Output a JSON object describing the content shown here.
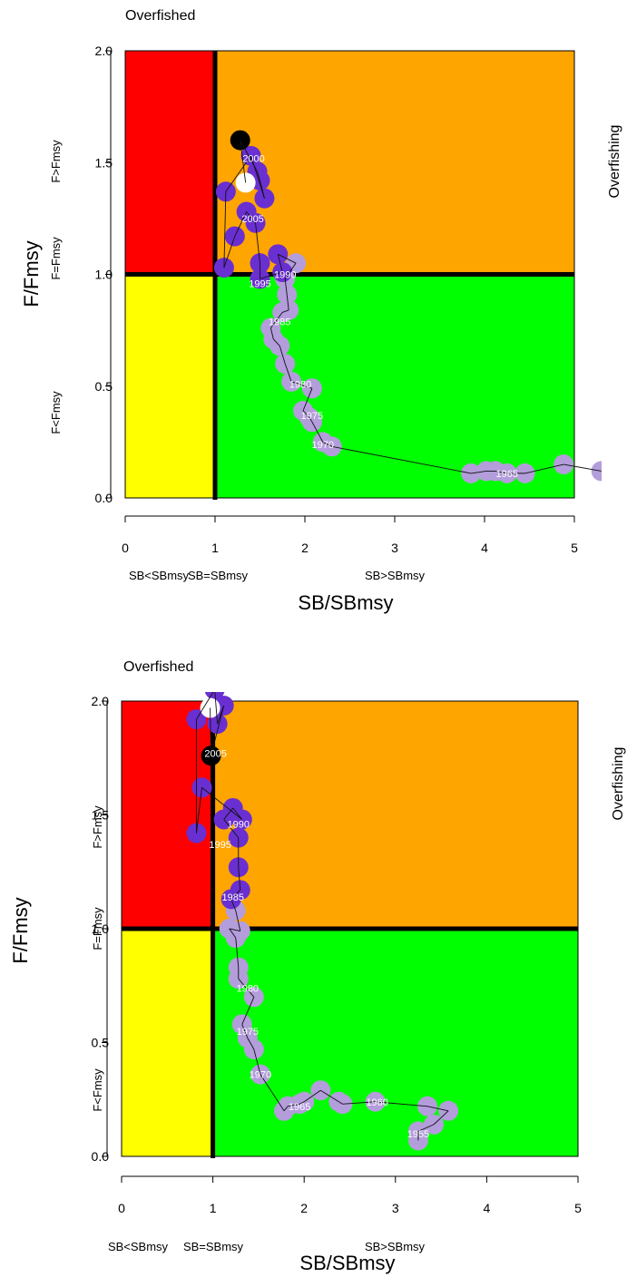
{
  "chart_data": [
    {
      "type": "scatter",
      "title": "",
      "xlabel": "SB/SBmsy",
      "ylabel": "F/Fmsy",
      "xlim": [
        0,
        5
      ],
      "ylim": [
        0,
        2
      ],
      "x_ticks": [
        "0",
        "1",
        "2",
        "3",
        "4",
        "5"
      ],
      "y_ticks": [
        "0.0",
        "0.5",
        "1.0",
        "1.5",
        "2.0"
      ],
      "zone_colors": {
        "red": "#ff0000",
        "orange": "#ffa500",
        "yellow": "#ffff00",
        "green": "#00ff00"
      },
      "point_colors": {
        "early": "#b39ddb",
        "late": "#6a2fd0",
        "final": "#000000",
        "current": "#ffffff"
      },
      "reference_lines": {
        "x": 1,
        "y": 1
      },
      "annotations": {
        "overfished": "Overfished",
        "overfishing": "Overfishing",
        "f_above": "F>Fmsy",
        "f_equal": "F=Fmsy",
        "f_below": "F<Fmsy",
        "sb_below": "SB<SBmsy",
        "sb_equal": "SB=SBmsy",
        "sb_above": "SB>SBmsy"
      },
      "trajectory": [
        {
          "x": 5.3,
          "y": 0.12
        },
        {
          "x": 4.88,
          "y": 0.15
        },
        {
          "x": 4.45,
          "y": 0.11
        },
        {
          "x": 4.25,
          "y": 0.11
        },
        {
          "x": 4.12,
          "y": 0.12
        },
        {
          "x": 4.02,
          "y": 0.12
        },
        {
          "x": 3.85,
          "y": 0.11
        },
        {
          "x": 2.3,
          "y": 0.23
        },
        {
          "x": 2.2,
          "y": 0.25
        },
        {
          "x": 2.08,
          "y": 0.34
        },
        {
          "x": 2.05,
          "y": 0.36
        },
        {
          "x": 1.98,
          "y": 0.39
        },
        {
          "x": 2.08,
          "y": 0.49
        },
        {
          "x": 1.85,
          "y": 0.52
        },
        {
          "x": 1.78,
          "y": 0.6
        },
        {
          "x": 1.72,
          "y": 0.68
        },
        {
          "x": 1.65,
          "y": 0.71
        },
        {
          "x": 1.62,
          "y": 0.76
        },
        {
          "x": 1.75,
          "y": 0.83
        },
        {
          "x": 1.82,
          "y": 0.84
        },
        {
          "x": 1.8,
          "y": 0.91
        },
        {
          "x": 1.78,
          "y": 0.98
        },
        {
          "x": 1.9,
          "y": 1.05
        },
        {
          "x": 1.7,
          "y": 1.09
        },
        {
          "x": 1.75,
          "y": 1.01
        },
        {
          "x": 1.5,
          "y": 0.98
        },
        {
          "x": 1.5,
          "y": 1.05
        },
        {
          "x": 1.45,
          "y": 1.23
        },
        {
          "x": 1.35,
          "y": 1.28
        },
        {
          "x": 1.22,
          "y": 1.17
        },
        {
          "x": 1.1,
          "y": 1.03
        },
        {
          "x": 1.12,
          "y": 1.37
        },
        {
          "x": 1.4,
          "y": 1.53
        },
        {
          "x": 1.55,
          "y": 1.34
        },
        {
          "x": 1.5,
          "y": 1.42
        },
        {
          "x": 1.47,
          "y": 1.46
        },
        {
          "x": 1.28,
          "y": 1.6
        },
        {
          "x": 1.34,
          "y": 1.41
        }
      ],
      "year_labels": [
        {
          "year": "1965",
          "x": 4.25,
          "y": 0.11
        },
        {
          "year": "1970",
          "x": 2.2,
          "y": 0.24
        },
        {
          "year": "1975",
          "x": 2.08,
          "y": 0.37
        },
        {
          "year": "1980",
          "x": 1.95,
          "y": 0.51
        },
        {
          "year": "1985",
          "x": 1.72,
          "y": 0.79
        },
        {
          "year": "1990",
          "x": 1.78,
          "y": 1.0
        },
        {
          "year": "1995",
          "x": 1.5,
          "y": 0.96
        },
        {
          "year": "2000",
          "x": 1.43,
          "y": 1.52
        },
        {
          "year": "2005",
          "x": 1.42,
          "y": 1.25
        }
      ]
    },
    {
      "type": "scatter",
      "title": "",
      "xlabel": "SB/SBmsy",
      "ylabel": "F/Fmsy",
      "xlim": [
        0,
        5
      ],
      "ylim": [
        0,
        2
      ],
      "x_ticks": [
        "0",
        "1",
        "2",
        "3",
        "4",
        "5"
      ],
      "y_ticks": [
        "0.0",
        "0.5",
        "1.0",
        "1.5",
        "2.0"
      ],
      "zone_colors": {
        "red": "#ff0000",
        "orange": "#ffa500",
        "yellow": "#ffff00",
        "green": "#00ff00"
      },
      "point_colors": {
        "early": "#b39ddb",
        "late": "#6a2fd0",
        "final": "#000000",
        "current": "#ffffff"
      },
      "reference_lines": {
        "x": 1,
        "y": 1
      },
      "annotations": {
        "overfished": "Overfished",
        "overfishing": "Overfishing",
        "f_above": "F>Fmsy",
        "f_equal": "F=Fmsy",
        "f_below": "F<Fmsy",
        "sb_below": "SB<SBmsy",
        "sb_equal": "SB=SBmsy",
        "sb_above": "SB>SBmsy"
      },
      "trajectory": [
        {
          "x": 3.25,
          "y": 0.07
        },
        {
          "x": 3.25,
          "y": 0.11
        },
        {
          "x": 3.42,
          "y": 0.14
        },
        {
          "x": 3.58,
          "y": 0.2
        },
        {
          "x": 3.35,
          "y": 0.22
        },
        {
          "x": 2.78,
          "y": 0.24
        },
        {
          "x": 2.42,
          "y": 0.23
        },
        {
          "x": 2.38,
          "y": 0.24
        },
        {
          "x": 2.18,
          "y": 0.29
        },
        {
          "x": 2.0,
          "y": 0.24
        },
        {
          "x": 1.95,
          "y": 0.23
        },
        {
          "x": 1.82,
          "y": 0.22
        },
        {
          "x": 1.78,
          "y": 0.2
        },
        {
          "x": 1.52,
          "y": 0.36
        },
        {
          "x": 1.45,
          "y": 0.47
        },
        {
          "x": 1.38,
          "y": 0.52
        },
        {
          "x": 1.32,
          "y": 0.58
        },
        {
          "x": 1.45,
          "y": 0.7
        },
        {
          "x": 1.28,
          "y": 0.78
        },
        {
          "x": 1.28,
          "y": 0.83
        },
        {
          "x": 1.25,
          "y": 0.96
        },
        {
          "x": 1.18,
          "y": 1.0
        },
        {
          "x": 1.3,
          "y": 0.99
        },
        {
          "x": 1.25,
          "y": 1.08
        },
        {
          "x": 1.2,
          "y": 1.13
        },
        {
          "x": 1.3,
          "y": 1.17
        },
        {
          "x": 1.28,
          "y": 1.27
        },
        {
          "x": 1.28,
          "y": 1.4
        },
        {
          "x": 1.12,
          "y": 1.48
        },
        {
          "x": 1.22,
          "y": 1.53
        },
        {
          "x": 1.32,
          "y": 1.48
        },
        {
          "x": 0.88,
          "y": 1.62
        },
        {
          "x": 0.82,
          "y": 1.42
        },
        {
          "x": 0.82,
          "y": 1.92
        },
        {
          "x": 1.02,
          "y": 2.05
        },
        {
          "x": 1.05,
          "y": 1.9
        },
        {
          "x": 1.12,
          "y": 1.98
        },
        {
          "x": 0.98,
          "y": 1.76
        },
        {
          "x": 0.97,
          "y": 1.97
        }
      ],
      "year_labels": [
        {
          "year": "1955",
          "x": 3.25,
          "y": 0.1
        },
        {
          "year": "1960",
          "x": 2.8,
          "y": 0.24
        },
        {
          "year": "1965",
          "x": 1.95,
          "y": 0.22
        },
        {
          "year": "1970",
          "x": 1.52,
          "y": 0.36
        },
        {
          "year": "1975",
          "x": 1.38,
          "y": 0.55
        },
        {
          "year": "1980",
          "x": 1.38,
          "y": 0.74
        },
        {
          "year": "1985",
          "x": 1.22,
          "y": 1.14
        },
        {
          "year": "1990",
          "x": 1.28,
          "y": 1.46
        },
        {
          "year": "1995",
          "x": 1.08,
          "y": 1.37
        },
        {
          "year": "2005",
          "x": 1.03,
          "y": 1.77
        }
      ]
    }
  ]
}
